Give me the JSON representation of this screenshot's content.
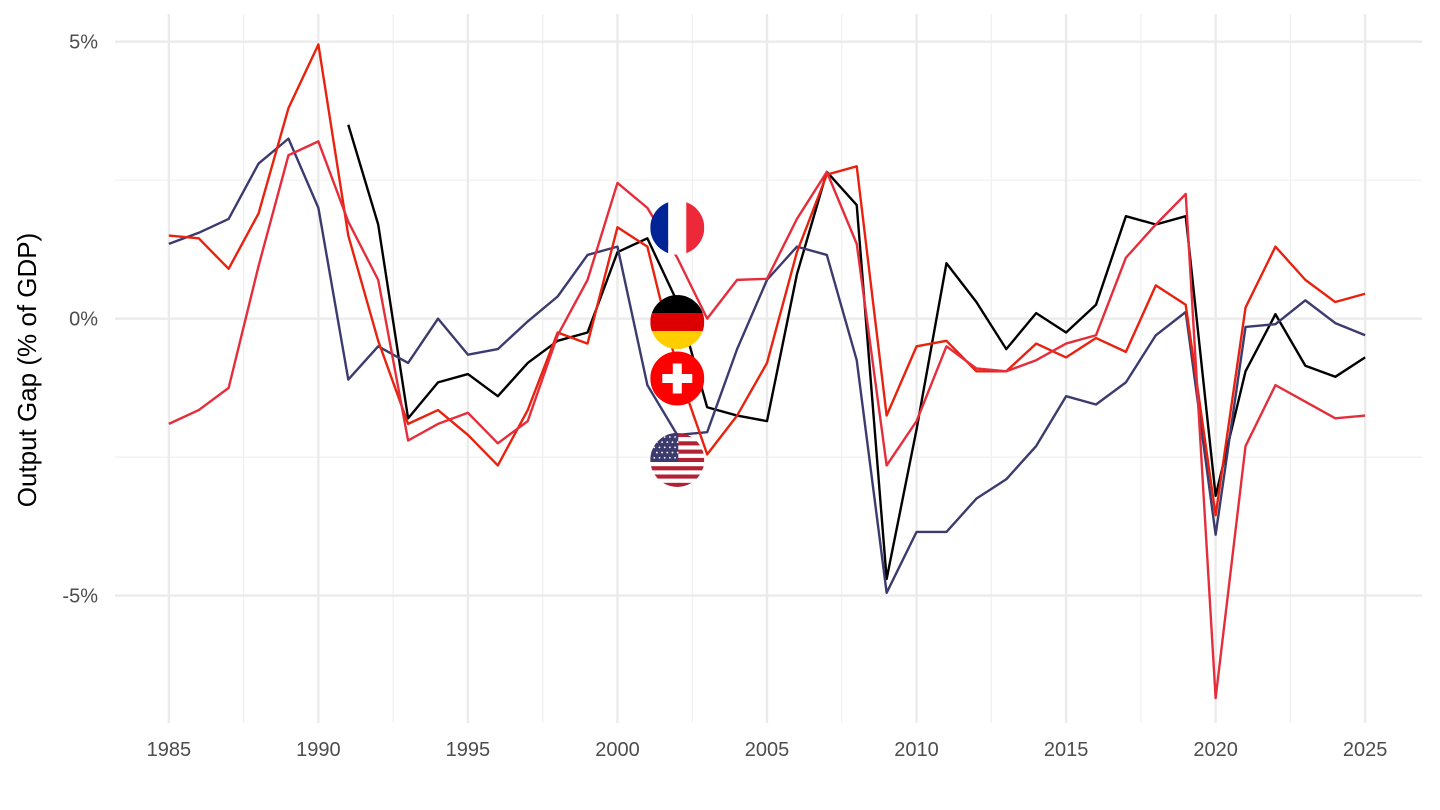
{
  "chart_data": {
    "type": "line",
    "title": "",
    "xlabel": "",
    "ylabel": "Output Gap (% of GDP)",
    "xlim": [
      1983.2,
      2026.9
    ],
    "ylim": [
      -7.3,
      5.5
    ],
    "x_ticks": [
      1985,
      1990,
      1995,
      2000,
      2005,
      2010,
      2015,
      2020,
      2025
    ],
    "x_tick_labels": [
      "1985",
      "1990",
      "1995",
      "2000",
      "2005",
      "2010",
      "2015",
      "2020",
      "2025"
    ],
    "y_ticks": [
      5,
      0,
      -5
    ],
    "y_tick_labels": [
      "5%",
      "0%",
      "-5%"
    ],
    "y_minor": [
      2.5,
      -2.5
    ],
    "grid": true,
    "legend": "flags at 2002",
    "flag_year": 2002,
    "series": [
      {
        "country": "Germany",
        "flag": "germany-flag-icon",
        "color": "#000000",
        "start_year": 1991,
        "values": [
          3.5,
          1.7,
          -1.8,
          -1.15,
          -1.0,
          -1.4,
          -0.8,
          -0.4,
          -0.25,
          1.2,
          1.45,
          0.3,
          -1.6,
          -1.75,
          -1.85,
          0.8,
          2.65,
          2.05,
          -4.7,
          -2.0,
          1.0,
          0.3,
          -0.55,
          0.1,
          -0.25,
          0.25,
          1.85,
          1.7,
          1.85,
          -3.2,
          -0.95,
          0.08,
          -0.85,
          -1.05,
          -0.7
        ]
      },
      {
        "country": "United States",
        "flag": "usa-flag-icon",
        "color": "#3C3B6E",
        "start_year": 1985,
        "values": [
          1.35,
          1.55,
          1.8,
          2.8,
          3.25,
          2.0,
          -1.1,
          -0.5,
          -0.8,
          0.0,
          -0.65,
          -0.55,
          -0.05,
          0.4,
          1.15,
          1.3,
          -1.2,
          -2.1,
          -2.05,
          -0.55,
          0.7,
          1.3,
          1.15,
          -0.75,
          -4.95,
          -3.85,
          -3.85,
          -3.25,
          -2.9,
          -2.3,
          -1.4,
          -1.55,
          -1.15,
          -0.3,
          0.12,
          -3.9,
          -0.15,
          -0.1,
          0.33,
          -0.08,
          -0.3
        ]
      },
      {
        "country": "Switzerland",
        "flag": "switzerland-flag-icon",
        "color": "#E8220E",
        "start_year": 1985,
        "values": [
          1.5,
          1.45,
          0.9,
          1.9,
          3.8,
          4.95,
          1.5,
          -0.4,
          -1.9,
          -1.65,
          -2.1,
          -2.65,
          -1.65,
          -0.25,
          -0.45,
          1.65,
          1.3,
          -0.9,
          -2.45,
          -1.75,
          -0.8,
          1.2,
          2.6,
          2.75,
          -1.75,
          -0.5,
          -0.4,
          -0.95,
          -0.95,
          -0.45,
          -0.7,
          -0.35,
          -0.6,
          0.6,
          0.25,
          -3.55,
          0.2,
          1.3,
          0.7,
          0.3,
          0.45
        ]
      },
      {
        "country": "France",
        "flag": "france-flag-icon",
        "color": "#E52E3C",
        "start_year": 1985,
        "values": [
          -1.9,
          -1.65,
          -1.25,
          0.95,
          2.95,
          3.2,
          1.75,
          0.7,
          -2.2,
          -1.9,
          -1.7,
          -2.25,
          -1.85,
          -0.3,
          0.7,
          2.45,
          2.0,
          1.1,
          0.0,
          0.7,
          0.72,
          1.8,
          2.65,
          1.35,
          -2.65,
          -1.85,
          -0.5,
          -0.9,
          -0.95,
          -0.75,
          -0.45,
          -0.3,
          1.1,
          1.7,
          2.25,
          -6.85,
          -2.3,
          -1.2,
          -1.5,
          -1.8,
          -1.75
        ]
      }
    ]
  }
}
